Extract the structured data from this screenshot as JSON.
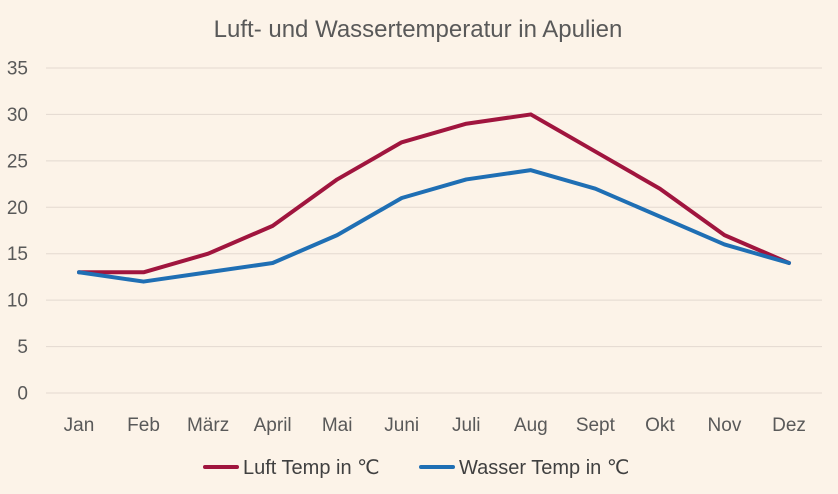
{
  "chart_data": {
    "type": "line",
    "title": "Luft- und Wassertemperatur in Apulien",
    "xlabel": "",
    "ylabel": "",
    "categories": [
      "Jan",
      "Feb",
      "März",
      "April",
      "Mai",
      "Juni",
      "Juli",
      "Aug",
      "Sept",
      "Okt",
      "Nov",
      "Dez"
    ],
    "ylim": [
      0,
      35
    ],
    "yticks": [
      0,
      5,
      10,
      15,
      20,
      25,
      30,
      35
    ],
    "grid": true,
    "legend_position": "bottom",
    "series": [
      {
        "name": "Luft Temp in ℃",
        "color": "#a0153e",
        "values": [
          13,
          13,
          15,
          18,
          23,
          27,
          29,
          30,
          26,
          22,
          17,
          14
        ]
      },
      {
        "name": "Wasser Temp in ℃",
        "color": "#1f6fb4",
        "values": [
          13,
          12,
          13,
          14,
          17,
          21,
          23,
          24,
          22,
          19,
          16,
          14
        ]
      }
    ]
  }
}
